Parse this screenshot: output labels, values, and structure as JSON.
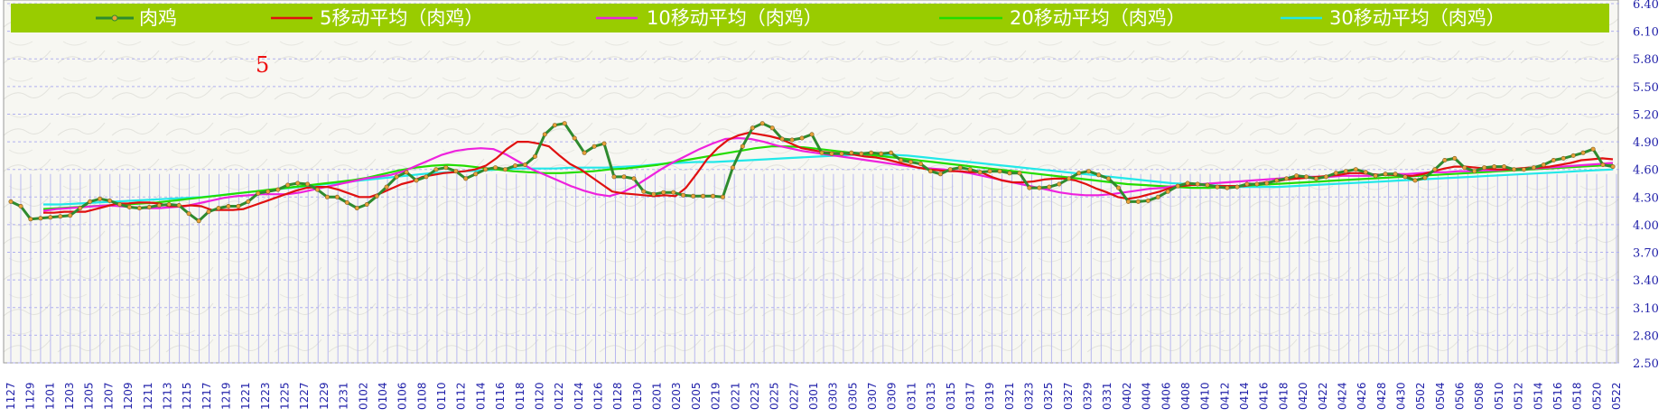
{
  "chart_data": {
    "type": "line",
    "title": "",
    "annotation": "5",
    "x_ticks": [
      "1127",
      "1129",
      "1201",
      "1203",
      "1205",
      "1207",
      "1209",
      "1211",
      "1213",
      "1215",
      "1217",
      "1219",
      "1221",
      "1223",
      "1225",
      "1227",
      "1229",
      "1231",
      "0102",
      "0104",
      "0106",
      "0108",
      "0110",
      "0112",
      "0114",
      "0116",
      "0118",
      "0120",
      "0122",
      "0124",
      "0126",
      "0128",
      "0130",
      "0201",
      "0203",
      "0205",
      "0219",
      "0221",
      "0223",
      "0225",
      "0227",
      "0301",
      "0303",
      "0305",
      "0307",
      "0309",
      "0311",
      "0313",
      "0315",
      "0317",
      "0319",
      "0321",
      "0323",
      "0325",
      "0327",
      "0329",
      "0331",
      "0402",
      "0404",
      "0406",
      "0408",
      "0410",
      "0412",
      "0414",
      "0416",
      "0418",
      "0420",
      "0422",
      "0424",
      "0426",
      "0428",
      "0430",
      "0502",
      "0504",
      "0506",
      "0508",
      "0510",
      "0512",
      "0514",
      "0516",
      "0518",
      "0520",
      "0522"
    ],
    "y_ticks": [
      "6.40",
      "6.10",
      "5.80",
      "5.50",
      "5.20",
      "4.90",
      "4.60",
      "4.30",
      "4.00",
      "3.70",
      "3.40",
      "3.10",
      "2.80",
      "2.50"
    ],
    "ylim": [
      2.5,
      6.4
    ],
    "grid": true,
    "legend_position": "top",
    "colors": {
      "legend_bg": "#99cc00",
      "price": "#2e8b2e",
      "price_marker": "#e8a23a",
      "ma5": "#e01010",
      "ma10": "#ee22dd",
      "ma20": "#22dd00",
      "ma30": "#22e8e8",
      "axis_text": "#2222aa",
      "tick_text": "#e02020",
      "annotation": "#ee1111",
      "vgrid": "#b8b8f0",
      "hgrid": "#b0b0ee"
    },
    "series": [
      {
        "name": "肉鸡",
        "key": "price",
        "values": [
          4.25,
          4.2,
          4.06,
          4.07,
          4.08,
          4.09,
          4.1,
          4.18,
          4.25,
          4.28,
          4.26,
          4.22,
          4.19,
          4.18,
          4.19,
          4.21,
          4.22,
          4.21,
          4.12,
          4.04,
          4.14,
          4.18,
          4.2,
          4.2,
          4.25,
          4.34,
          4.36,
          4.38,
          4.43,
          4.45,
          4.44,
          4.38,
          4.3,
          4.3,
          4.24,
          4.18,
          4.22,
          4.31,
          4.41,
          4.52,
          4.57,
          4.48,
          4.52,
          4.6,
          4.62,
          4.58,
          4.5,
          4.55,
          4.6,
          4.62,
          4.6,
          4.64,
          4.65,
          4.74,
          4.98,
          5.08,
          5.1,
          4.94,
          4.78,
          4.85,
          4.88,
          4.52,
          4.52,
          4.5,
          4.36,
          4.33,
          4.35,
          4.35,
          4.32,
          4.31,
          4.31,
          4.31,
          4.3,
          4.62,
          4.85,
          5.05,
          5.1,
          5.05,
          4.93,
          4.92,
          4.94,
          4.98,
          4.78,
          4.77,
          4.77,
          4.78,
          4.77,
          4.78,
          4.77,
          4.78,
          4.7,
          4.68,
          4.66,
          4.58,
          4.55,
          4.6,
          4.62,
          4.6,
          4.57,
          4.58,
          4.58,
          4.56,
          4.56,
          4.4,
          4.4,
          4.41,
          4.44,
          4.5,
          4.56,
          4.58,
          4.54,
          4.5,
          4.4,
          4.25,
          4.25,
          4.26,
          4.3,
          4.36,
          4.42,
          4.45,
          4.44,
          4.43,
          4.41,
          4.4,
          4.41,
          4.44,
          4.44,
          4.45,
          4.48,
          4.5,
          4.53,
          4.52,
          4.5,
          4.52,
          4.56,
          4.58,
          4.6,
          4.57,
          4.53,
          4.55,
          4.55,
          4.52,
          4.48,
          4.51,
          4.6,
          4.7,
          4.72,
          4.62,
          4.58,
          4.62,
          4.63,
          4.63,
          4.6,
          4.6,
          4.62,
          4.65,
          4.7,
          4.72,
          4.75,
          4.78,
          4.82,
          4.65,
          4.63
        ]
      },
      {
        "name": "5移动平均（肉鸡）",
        "key": "ma5",
        "values": [
          4.13,
          4.13,
          4.14,
          4.14,
          4.14,
          4.17,
          4.2,
          4.23,
          4.23,
          4.24,
          4.24,
          4.23,
          4.2,
          4.2,
          4.21,
          4.2,
          4.16,
          4.16,
          4.16,
          4.17,
          4.21,
          4.25,
          4.29,
          4.33,
          4.37,
          4.4,
          4.41,
          4.41,
          4.38,
          4.34,
          4.3,
          4.3,
          4.34,
          4.39,
          4.44,
          4.47,
          4.52,
          4.54,
          4.56,
          4.57,
          4.58,
          4.6,
          4.64,
          4.72,
          4.82,
          4.9,
          4.9,
          4.88,
          4.85,
          4.75,
          4.66,
          4.6,
          4.52,
          4.44,
          4.36,
          4.34,
          4.33,
          4.32,
          4.31,
          4.32,
          4.31,
          4.4,
          4.55,
          4.71,
          4.83,
          4.92,
          4.97,
          5.0,
          4.98,
          4.96,
          4.93,
          4.88,
          4.83,
          4.81,
          4.79,
          4.78,
          4.77,
          4.76,
          4.74,
          4.73,
          4.71,
          4.68,
          4.65,
          4.62,
          4.6,
          4.59,
          4.58,
          4.58,
          4.57,
          4.57,
          4.52,
          4.48,
          4.46,
          4.46,
          4.47,
          4.49,
          4.5,
          4.5,
          4.48,
          4.44,
          4.39,
          4.35,
          4.3,
          4.28,
          4.3,
          4.33,
          4.36,
          4.4,
          4.42,
          4.43,
          4.43,
          4.42,
          4.42,
          4.42,
          4.42,
          4.44,
          4.46,
          4.47,
          4.49,
          4.5,
          4.51,
          4.52,
          4.53,
          4.54,
          4.56,
          4.56,
          4.55,
          4.54,
          4.54,
          4.53,
          4.53,
          4.55,
          4.58,
          4.61,
          4.63,
          4.63,
          4.62,
          4.61,
          4.6,
          4.6,
          4.61,
          4.62,
          4.62,
          4.63,
          4.65,
          4.67,
          4.7,
          4.71,
          4.72,
          4.71
        ]
      },
      {
        "name": "10移动平均（肉鸡）",
        "key": "ma10",
        "values": [
          4.15,
          4.17,
          4.18,
          4.19,
          4.2,
          4.21,
          4.2,
          4.19,
          4.18,
          4.18,
          4.19,
          4.2,
          4.23,
          4.26,
          4.29,
          4.31,
          4.32,
          4.33,
          4.33,
          4.33,
          4.35,
          4.38,
          4.41,
          4.44,
          4.47,
          4.5,
          4.52,
          4.54,
          4.58,
          4.64,
          4.7,
          4.76,
          4.8,
          4.82,
          4.83,
          4.82,
          4.76,
          4.68,
          4.6,
          4.54,
          4.48,
          4.42,
          4.37,
          4.33,
          4.31,
          4.35,
          4.42,
          4.51,
          4.6,
          4.68,
          4.75,
          4.82,
          4.88,
          4.93,
          4.94,
          4.93,
          4.9,
          4.86,
          4.83,
          4.8,
          4.78,
          4.76,
          4.74,
          4.72,
          4.7,
          4.68,
          4.66,
          4.64,
          4.62,
          4.61,
          4.6,
          4.58,
          4.56,
          4.53,
          4.5,
          4.47,
          4.44,
          4.41,
          4.38,
          4.35,
          4.33,
          4.32,
          4.32,
          4.33,
          4.35,
          4.37,
          4.39,
          4.4,
          4.42,
          4.43,
          4.44,
          4.45,
          4.46,
          4.47,
          4.48,
          4.49,
          4.5,
          4.51,
          4.52,
          4.52,
          4.52,
          4.53,
          4.53,
          4.53,
          4.54,
          4.55,
          4.55,
          4.56,
          4.57,
          4.57,
          4.58,
          4.58,
          4.59,
          4.59,
          4.6,
          4.6,
          4.61,
          4.62,
          4.63,
          4.64,
          4.65,
          4.66,
          4.67
        ]
      },
      {
        "name": "20移动平均（肉鸡）",
        "key": "ma20",
        "values": [
          4.17,
          4.18,
          4.19,
          4.2,
          4.21,
          4.22,
          4.23,
          4.24,
          4.26,
          4.28,
          4.3,
          4.32,
          4.34,
          4.36,
          4.38,
          4.4,
          4.42,
          4.44,
          4.46,
          4.48,
          4.51,
          4.55,
          4.59,
          4.62,
          4.64,
          4.65,
          4.64,
          4.62,
          4.6,
          4.58,
          4.57,
          4.56,
          4.56,
          4.57,
          4.58,
          4.6,
          4.61,
          4.63,
          4.65,
          4.68,
          4.71,
          4.74,
          4.77,
          4.8,
          4.83,
          4.85,
          4.85,
          4.84,
          4.82,
          4.8,
          4.78,
          4.76,
          4.74,
          4.72,
          4.7,
          4.68,
          4.66,
          4.64,
          4.62,
          4.6,
          4.58,
          4.56,
          4.54,
          4.52,
          4.5,
          4.48,
          4.46,
          4.44,
          4.43,
          4.42,
          4.41,
          4.4,
          4.4,
          4.41,
          4.42,
          4.43,
          4.44,
          4.45,
          4.46,
          4.47,
          4.48,
          4.49,
          4.5,
          4.51,
          4.52,
          4.53,
          4.54,
          4.55,
          4.56,
          4.57,
          4.58,
          4.59,
          4.6,
          4.61,
          4.62,
          4.63,
          4.64,
          4.65
        ]
      },
      {
        "name": "30移动平均（肉鸡）",
        "key": "ma30",
        "values": [
          4.22,
          4.22,
          4.23,
          4.24,
          4.25,
          4.26,
          4.27,
          4.28,
          4.29,
          4.3,
          4.32,
          4.34,
          4.36,
          4.38,
          4.4,
          4.42,
          4.44,
          4.46,
          4.48,
          4.5,
          4.52,
          4.54,
          4.56,
          4.57,
          4.58,
          4.59,
          4.6,
          4.61,
          4.61,
          4.61,
          4.62,
          4.62,
          4.62,
          4.63,
          4.64,
          4.66,
          4.67,
          4.68,
          4.68,
          4.69,
          4.7,
          4.71,
          4.72,
          4.73,
          4.74,
          4.75,
          4.76,
          4.76,
          4.76,
          4.75,
          4.73,
          4.71,
          4.69,
          4.67,
          4.65,
          4.63,
          4.61,
          4.59,
          4.57,
          4.55,
          4.53,
          4.51,
          4.49,
          4.47,
          4.45,
          4.44,
          4.43,
          4.42,
          4.41,
          4.41,
          4.41,
          4.42,
          4.43,
          4.44,
          4.45,
          4.46,
          4.47,
          4.48,
          4.49,
          4.5,
          4.51,
          4.52,
          4.53,
          4.54,
          4.55,
          4.56,
          4.57,
          4.58,
          4.59,
          4.6
        ]
      }
    ]
  }
}
